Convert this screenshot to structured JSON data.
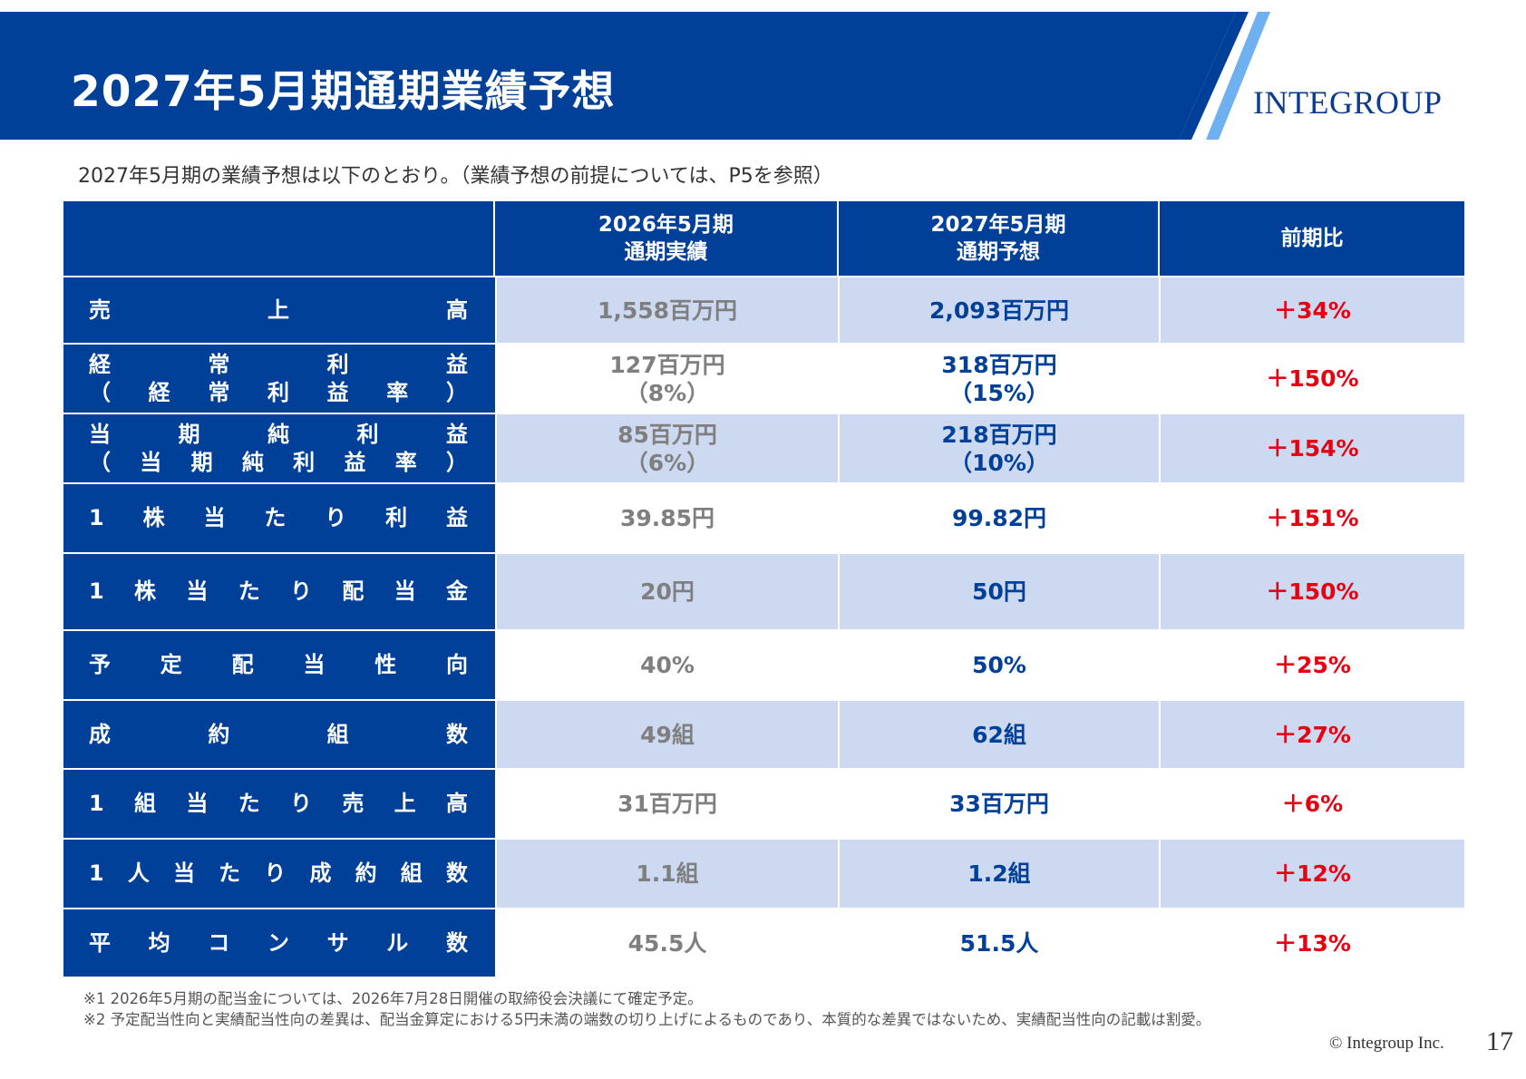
{
  "header": {
    "title": "2027年5月期通期業績予想",
    "logo": "INTEGROUP",
    "colors": {
      "brand_blue": "#004098",
      "accent_light_blue": "#6fb1f0"
    }
  },
  "subtitle": "2027年5月期の業績予想は以下のとおり。（業績予想の前提については、P5を参照）",
  "table": {
    "headers": [
      {
        "lines": [
          ""
        ]
      },
      {
        "lines": [
          "2026年5月期",
          "通期実績"
        ]
      },
      {
        "lines": [
          "2027年5月期",
          "通期予想"
        ]
      },
      {
        "lines": [
          "前期比"
        ]
      }
    ],
    "rows": [
      {
        "height": 72,
        "shaded": true,
        "label": [
          [
            "売",
            "上",
            "高"
          ]
        ],
        "prev": [
          "1,558百万円"
        ],
        "forecast": [
          "2,093百万円"
        ],
        "ratio": "＋34%"
      },
      {
        "height": 75,
        "shaded": false,
        "label": [
          [
            "経",
            "常",
            "利",
            "益"
          ],
          [
            "（",
            "経",
            "常",
            "利",
            "益",
            "率",
            "）"
          ]
        ],
        "prev": [
          "127百万円",
          "（8%）"
        ],
        "forecast": [
          "318百万円",
          "（15%）"
        ],
        "ratio": "＋150%"
      },
      {
        "height": 75,
        "shaded": true,
        "label": [
          [
            "当",
            "期",
            "純",
            "利",
            "益"
          ],
          [
            "（",
            "当",
            "期",
            "純",
            "利",
            "益",
            "率",
            "）"
          ]
        ],
        "prev": [
          "85百万円",
          "（6%）"
        ],
        "forecast": [
          "218百万円",
          "（10%）"
        ],
        "ratio": "＋154%"
      },
      {
        "height": 75,
        "shaded": false,
        "label": [
          [
            "1",
            "株",
            "当",
            "た",
            "り",
            "利",
            "益"
          ]
        ],
        "prev": [
          "39.85円"
        ],
        "forecast": [
          "99.82円"
        ],
        "ratio": "＋151%"
      },
      {
        "height": 83,
        "shaded": true,
        "label": [
          [
            "1",
            "株",
            "当",
            "た",
            "り",
            "配",
            "当",
            "金"
          ]
        ],
        "prev": [
          "20円"
        ],
        "forecast": [
          "50円"
        ],
        "ratio": "＋150%"
      },
      {
        "height": 75,
        "shaded": false,
        "label": [
          [
            "予",
            "定",
            "配",
            "当",
            "性",
            "向"
          ]
        ],
        "prev": [
          "40%"
        ],
        "forecast": [
          "50%"
        ],
        "ratio": "＋25%"
      },
      {
        "height": 74,
        "shaded": true,
        "label": [
          [
            "成",
            "約",
            "組",
            "数"
          ]
        ],
        "prev": [
          "49組"
        ],
        "forecast": [
          "62組"
        ],
        "ratio": "＋27%"
      },
      {
        "height": 75,
        "shaded": false,
        "label": [
          [
            "1",
            "組",
            "当",
            "た",
            "り",
            "売",
            "上",
            "高"
          ]
        ],
        "prev": [
          "31百万円"
        ],
        "forecast": [
          "33百万円"
        ],
        "ratio": "＋6%"
      },
      {
        "height": 75,
        "shaded": true,
        "label": [
          [
            "1",
            "人",
            "当",
            "た",
            "り",
            "成",
            "約",
            "組",
            "数"
          ]
        ],
        "prev": [
          "1.1組"
        ],
        "forecast": [
          "1.2組"
        ],
        "ratio": "＋12%"
      },
      {
        "height": 74,
        "shaded": false,
        "label": [
          [
            "平",
            "均",
            "コ",
            "ン",
            "サ",
            "ル",
            "数"
          ]
        ],
        "prev": [
          "45.5人"
        ],
        "forecast": [
          "51.5人"
        ],
        "ratio": "＋13%"
      }
    ]
  },
  "notes": [
    "※1 2026年5月期の配当金については、2026年7月28日開催の取締役会決議にて確定予定。",
    "※2 予定配当性向と実績配当性向の差異は、配当金算定における5円未満の端数の切り上げによるものであり、本質的な差異ではないため、実績配当性向の記載は割愛。"
  ],
  "footer": {
    "copyright": "© Integroup Inc.",
    "page_number": "17"
  }
}
